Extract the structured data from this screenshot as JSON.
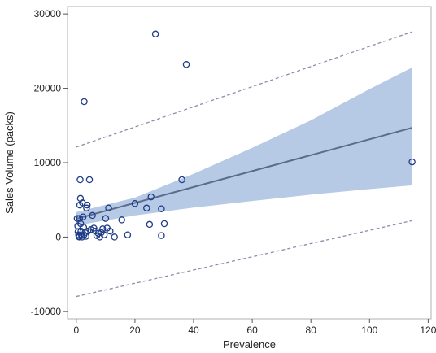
{
  "chart_data": {
    "type": "scatter",
    "title": "",
    "xlabel": "Prevalence",
    "ylabel": "Sales Volume (packs)",
    "xlim": [
      -3,
      121
    ],
    "ylim": [
      -11000,
      31000
    ],
    "xticks": [
      0,
      20,
      40,
      60,
      80,
      100,
      120
    ],
    "yticks": [
      -10000,
      0,
      10000,
      20000,
      30000
    ],
    "grid": false,
    "legend": "none",
    "points": [
      [
        0.3,
        2500
      ],
      [
        0.5,
        1500
      ],
      [
        0.6,
        700
      ],
      [
        0.8,
        300
      ],
      [
        0.9,
        100
      ],
      [
        1.0,
        0
      ],
      [
        1.1,
        2500
      ],
      [
        1.2,
        4300
      ],
      [
        1.3,
        7700
      ],
      [
        1.4,
        5200
      ],
      [
        1.5,
        1800
      ],
      [
        1.6,
        800
      ],
      [
        1.8,
        200
      ],
      [
        2.0,
        0
      ],
      [
        2.1,
        4600
      ],
      [
        2.3,
        2700
      ],
      [
        2.5,
        1300
      ],
      [
        2.6,
        300
      ],
      [
        2.7,
        18200
      ],
      [
        3.0,
        600
      ],
      [
        3.3,
        100
      ],
      [
        3.5,
        3900
      ],
      [
        3.7,
        4300
      ],
      [
        4.0,
        800
      ],
      [
        4.5,
        7700
      ],
      [
        5.0,
        1000
      ],
      [
        5.5,
        2900
      ],
      [
        6.0,
        1200
      ],
      [
        6.5,
        800
      ],
      [
        7.0,
        200
      ],
      [
        7.5,
        500
      ],
      [
        8.0,
        0
      ],
      [
        8.5,
        600
      ],
      [
        9.0,
        1100
      ],
      [
        9.5,
        300
      ],
      [
        10.0,
        2500
      ],
      [
        10.5,
        1200
      ],
      [
        11.0,
        3900
      ],
      [
        11.5,
        800
      ],
      [
        13.0,
        0
      ],
      [
        15.5,
        2300
      ],
      [
        17.5,
        300
      ],
      [
        20.0,
        4500
      ],
      [
        24.0,
        3900
      ],
      [
        25.0,
        1700
      ],
      [
        25.5,
        5400
      ],
      [
        27.0,
        27300
      ],
      [
        29.0,
        3800
      ],
      [
        29.0,
        200
      ],
      [
        30.0,
        1800
      ],
      [
        36.0,
        7700
      ],
      [
        37.5,
        23200
      ],
      [
        114.5,
        10100
      ]
    ],
    "fit_line": {
      "x": [
        0,
        114.5
      ],
      "y": [
        2450,
        14700
      ]
    },
    "confidence_band": {
      "x": [
        0,
        20,
        40,
        60,
        80,
        100,
        114.5
      ],
      "lower": [
        1550,
        2900,
        3950,
        4850,
        5700,
        6450,
        6950
      ],
      "upper": [
        3350,
        5300,
        8500,
        12000,
        15700,
        19900,
        22800
      ]
    },
    "prediction_band": {
      "x": [
        0,
        114.5
      ],
      "lower": [
        -8000,
        2200
      ],
      "upper": [
        12100,
        27600
      ]
    },
    "colors": {
      "points": "#1f3c88",
      "fit_line": "#5a6b8c",
      "confidence_band": "#aec4e2",
      "prediction_band": "#8e8ea8",
      "frame": "#b0b0b0"
    }
  }
}
